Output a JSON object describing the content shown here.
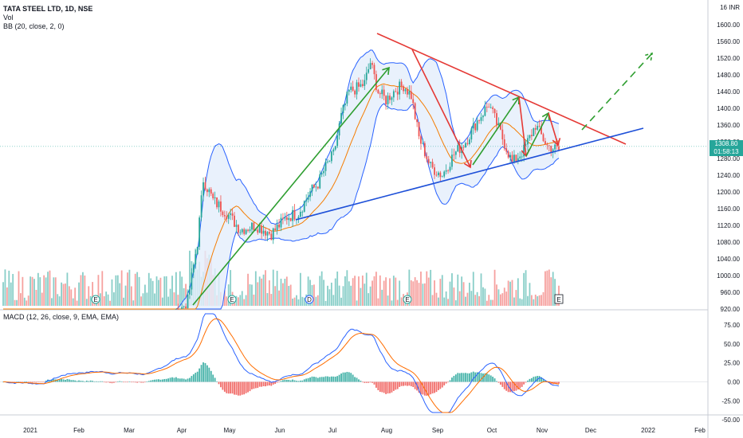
{
  "header": {
    "symbol": "TATA STEEL LTD, 1D, NSE",
    "vol": "Vol",
    "bb": "BB (20, close, 2, 0)",
    "macd": "MACD (12, 26, close, 9, EMA, EMA)"
  },
  "price_tag": {
    "price": "1308.80",
    "countdown": "01:58:13"
  },
  "chart_data": {
    "type": "line",
    "title": "",
    "x_ticks": [
      "2021",
      "Feb",
      "Mar",
      "Apr",
      "May",
      "Jun",
      "Jul",
      "Aug",
      "Sep",
      "Oct",
      "Nov",
      "Dec",
      "2022",
      "Feb"
    ],
    "price_ticks": [
      "1600.00",
      "1560.00",
      "1520.00",
      "1480.00",
      "1440.00",
      "1400.00",
      "1360.00",
      "1320.00",
      "1280.00",
      "1240.00",
      "1200.00",
      "1160.00",
      "1120.00",
      "1080.00",
      "1040.00",
      "1000.00",
      "960.00",
      "920.00"
    ],
    "price_top_label": "INR",
    "price_top_value": "16",
    "macd_ticks": [
      "75.00",
      "50.00",
      "25.00",
      "0.00",
      "-25.00",
      "-50.00"
    ],
    "ylim_price": [
      910,
      1640
    ],
    "ylim_macd": [
      -55,
      95
    ],
    "price_close": [
      [
        "May",
        960
      ],
      [
        "May",
        1000
      ],
      [
        "May",
        1080
      ],
      [
        "May",
        1180
      ],
      [
        "May",
        1240
      ],
      [
        "May",
        1190
      ],
      [
        "May",
        1140
      ],
      [
        "May",
        1110
      ],
      [
        "Jun",
        1100
      ],
      [
        "Jun",
        1110
      ],
      [
        "Jun",
        1120
      ],
      [
        "Jun",
        1105
      ],
      [
        "Jun",
        1120
      ],
      [
        "Jun",
        1130
      ],
      [
        "Jun",
        1100
      ],
      [
        "Jun",
        1090
      ],
      [
        "Jul",
        1120
      ],
      [
        "Jul",
        1150
      ],
      [
        "Jul",
        1180
      ],
      [
        "Jul",
        1210
      ],
      [
        "Jul",
        1250
      ],
      [
        "Jul",
        1300
      ],
      [
        "Jul",
        1390
      ],
      [
        "Jul",
        1420
      ],
      [
        "Aug",
        1440
      ],
      [
        "Aug",
        1420
      ],
      [
        "Aug",
        1460
      ],
      [
        "Aug",
        1520
      ],
      [
        "Aug",
        1450
      ],
      [
        "Aug",
        1420
      ],
      [
        "Aug",
        1400
      ],
      [
        "Aug",
        1440
      ],
      [
        "Sep",
        1430
      ],
      [
        "Sep",
        1450
      ],
      [
        "Sep",
        1460
      ],
      [
        "Sep",
        1420
      ],
      [
        "Sep",
        1330
      ],
      [
        "Sep",
        1260
      ],
      [
        "Sep",
        1240
      ],
      [
        "Sep",
        1280
      ],
      [
        "Oct",
        1300
      ],
      [
        "Oct",
        1330
      ],
      [
        "Oct",
        1380
      ],
      [
        "Oct",
        1410
      ],
      [
        "Oct",
        1340
      ],
      [
        "Oct",
        1280
      ],
      [
        "Oct",
        1270
      ],
      [
        "Oct",
        1300
      ],
      [
        "Nov",
        1370
      ],
      [
        "Nov",
        1320
      ],
      [
        "Nov",
        1300
      ],
      [
        "Nov",
        1310
      ]
    ],
    "annotations": {
      "resistance_line": {
        "from": [
          "Aug",
          1570
        ],
        "to": [
          "Dec",
          1300
        ],
        "color": "#e53935"
      },
      "support_line": {
        "from": [
          "Jun",
          1120
        ],
        "to": [
          "Dec",
          1350
        ],
        "color": "#1e50d8"
      },
      "green_up_arrow_1": {
        "from": [
          "Apr",
          910
        ],
        "to": [
          "Jul",
          1490
        ],
        "color": "#2e9e30"
      },
      "green_dashed_projection": {
        "from": [
          "Dec",
          1310
        ],
        "to": [
          "Dec",
          1530
        ],
        "color": "#2e9e30"
      }
    },
    "colors": {
      "bb_band": "#2962ff",
      "bb_basis": "#f57c00",
      "bb_fill": "#e3eefb",
      "up": "#26a69a",
      "down": "#ef5350",
      "macd_line": "#2962ff",
      "signal_line": "#ff6d00"
    }
  }
}
